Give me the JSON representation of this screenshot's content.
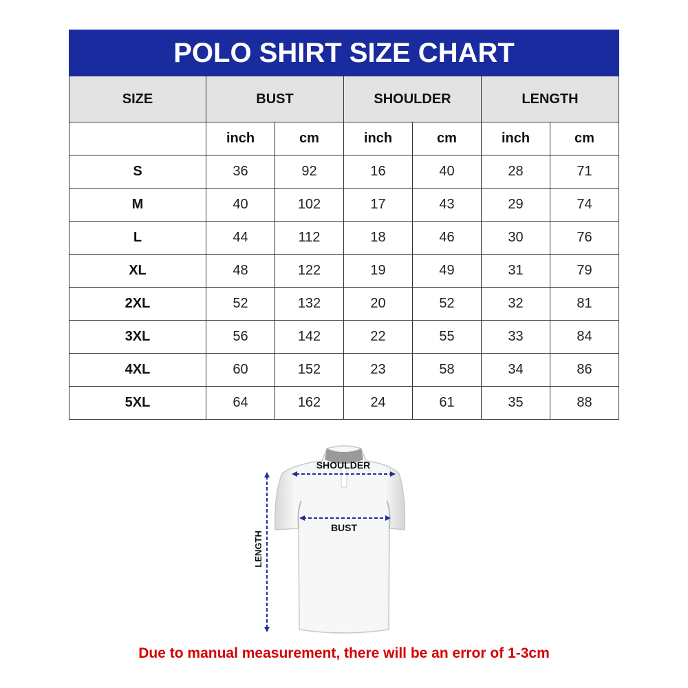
{
  "title": "POLO SHIRT SIZE CHART",
  "headers": {
    "size": "SIZE",
    "bust": "BUST",
    "shoulder": "SHOULDER",
    "length": "LENGTH"
  },
  "units": [
    "inch",
    "cm",
    "inch",
    "cm",
    "inch",
    "cm"
  ],
  "rows": [
    {
      "size": "S",
      "values": [
        "36",
        "92",
        "16",
        "40",
        "28",
        "71"
      ]
    },
    {
      "size": "M",
      "values": [
        "40",
        "102",
        "17",
        "43",
        "29",
        "74"
      ]
    },
    {
      "size": "L",
      "values": [
        "44",
        "112",
        "18",
        "46",
        "30",
        "76"
      ]
    },
    {
      "size": "XL",
      "values": [
        "48",
        "122",
        "19",
        "49",
        "31",
        "79"
      ]
    },
    {
      "size": "2XL",
      "values": [
        "52",
        "132",
        "20",
        "52",
        "32",
        "81"
      ]
    },
    {
      "size": "3XL",
      "values": [
        "56",
        "142",
        "22",
        "55",
        "33",
        "84"
      ]
    },
    {
      "size": "4XL",
      "values": [
        "60",
        "152",
        "23",
        "58",
        "34",
        "86"
      ]
    },
    {
      "size": "5XL",
      "values": [
        "64",
        "162",
        "24",
        "61",
        "35",
        "88"
      ]
    }
  ],
  "diagram": {
    "shoulder": "SHOULDER",
    "bust": "BUST",
    "length": "LENGTH"
  },
  "note": "Due to manual measurement, there will be an error of 1-3cm",
  "colors": {
    "title_bg": "#1a2b9f",
    "header_bg": "#e3e3e3",
    "note": "#d40000",
    "arrow": "#1f2f9a"
  }
}
